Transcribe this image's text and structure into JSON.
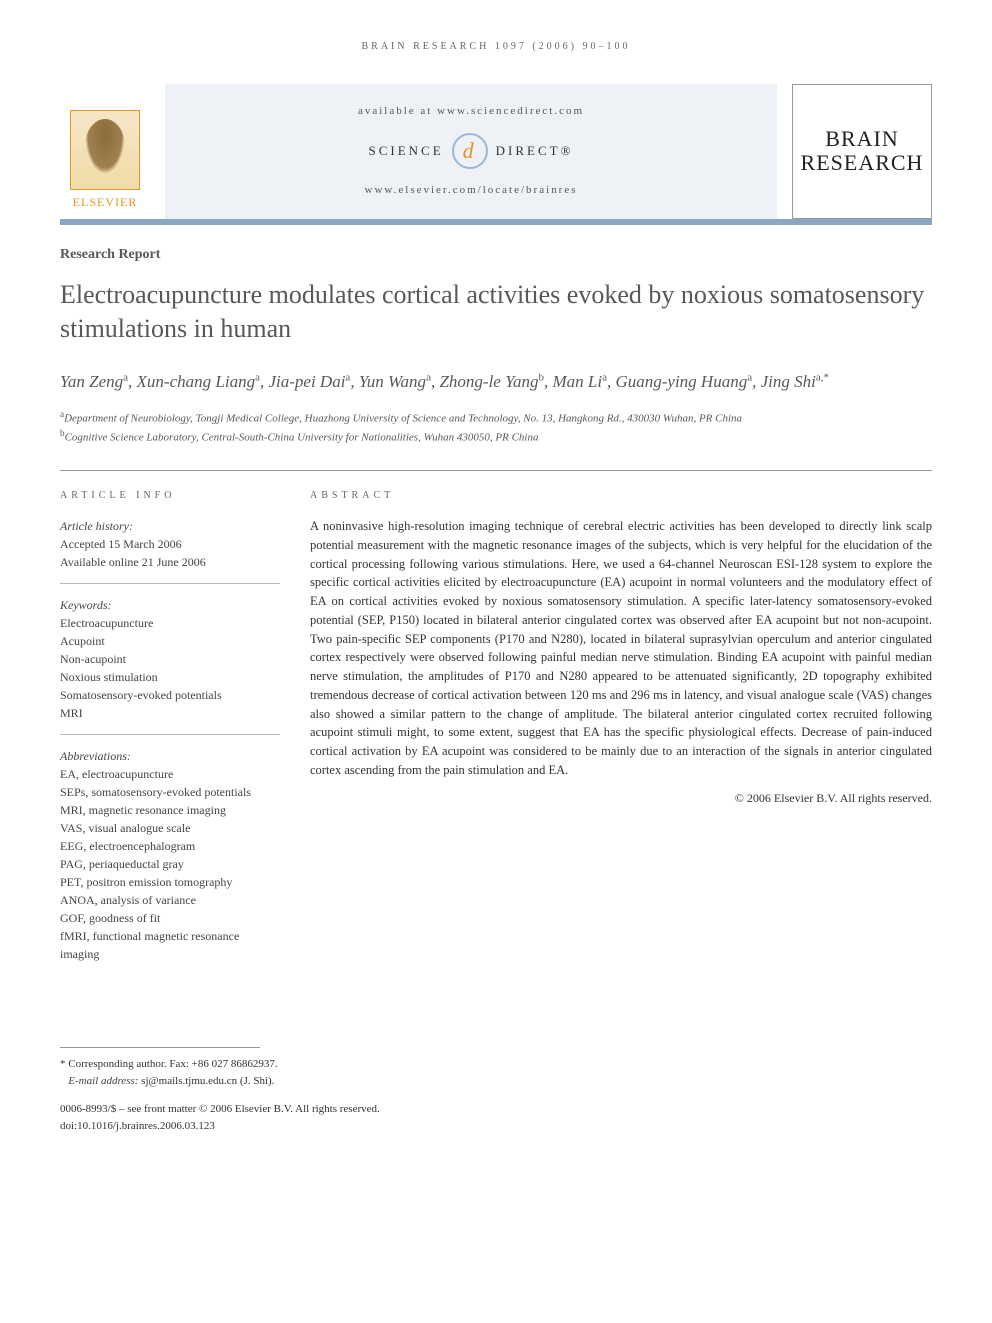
{
  "running_header": "BRAIN RESEARCH 1097 (2006) 90–100",
  "header": {
    "publisher": "ELSEVIER",
    "available_text": "available at www.sciencedirect.com",
    "sd_left": "SCIENCE",
    "sd_right": "DIRECT®",
    "journal_url": "www.elsevier.com/locate/brainres",
    "journal_name_line1": "BRAIN",
    "journal_name_line2": "RESEARCH"
  },
  "article_type": "Research Report",
  "title": "Electroacupuncture modulates cortical activities evoked by noxious somatosensory stimulations in human",
  "authors_html": "Yan Zeng<sup>a</sup>, Xun-chang Liang<sup>a</sup>, Jia-pei Dai<sup>a</sup>, Yun Wang<sup>a</sup>, Zhong-le Yang<sup>b</sup>, Man Li<sup>a</sup>, Guang-ying Huang<sup>a</sup>, Jing Shi<sup>a,*</sup>",
  "affiliations": {
    "a": "Department of Neurobiology, Tongji Medical College, Huazhong University of Science and Technology, No. 13, Hangkong Rd., 430030 Wuhan, PR China",
    "b": "Cognitive Science Laboratory, Central-South-China University for Nationalities, Wuhan 430050, PR China"
  },
  "info": {
    "heading": "ARTICLE INFO",
    "history_label": "Article history:",
    "history_lines": [
      "Accepted 15 March 2006",
      "Available online 21 June 2006"
    ],
    "keywords_label": "Keywords:",
    "keywords": [
      "Electroacupuncture",
      "Acupoint",
      "Non-acupoint",
      "Noxious stimulation",
      "Somatosensory-evoked potentials",
      "MRI"
    ],
    "abbrev_label": "Abbreviations:",
    "abbreviations": [
      "EA, electroacupuncture",
      "SEPs, somatosensory-evoked potentials",
      "MRI, magnetic resonance imaging",
      "VAS, visual analogue scale",
      "EEG, electroencephalogram",
      "PAG, periaqueductal gray",
      "PET, positron emission tomography",
      "ANOA, analysis of variance",
      "GOF, goodness of fit",
      "fMRI, functional magnetic resonance imaging"
    ]
  },
  "abstract": {
    "heading": "ABSTRACT",
    "text": "A noninvasive high-resolution imaging technique of cerebral electric activities has been developed to directly link scalp potential measurement with the magnetic resonance images of the subjects, which is very helpful for the elucidation of the cortical processing following various stimulations. Here, we used a 64-channel Neuroscan ESI-128 system to explore the specific cortical activities elicited by electroacupuncture (EA) acupoint in normal volunteers and the modulatory effect of EA on cortical activities evoked by noxious somatosensory stimulation. A specific later-latency somatosensory-evoked potential (SEP, P150) located in bilateral anterior cingulated cortex was observed after EA acupoint but not non-acupoint. Two pain-specific SEP components (P170 and N280), located in bilateral suprasylvian operculum and anterior cingulated cortex respectively were observed following painful median nerve stimulation. Binding EA acupoint with painful median nerve stimulation, the amplitudes of P170 and N280 appeared to be attenuated significantly, 2D topography exhibited tremendous decrease of cortical activation between 120 ms and 296 ms in latency, and visual analogue scale (VAS) changes also showed a similar pattern to the change of amplitude. The bilateral anterior cingulated cortex recruited following acupoint stimuli might, to some extent, suggest that EA has the specific physiological effects. Decrease of pain-induced cortical activation by EA acupoint was considered to be mainly due to an interaction of the signals in anterior cingulated cortex ascending from the pain stimulation and EA.",
    "copyright": "© 2006 Elsevier B.V. All rights reserved."
  },
  "footnote": {
    "corresponding": "* Corresponding author. Fax: +86 027 86862937.",
    "email_label": "E-mail address:",
    "email": "sj@mails.tjmu.edu.cn",
    "email_name": "(J. Shi)."
  },
  "bottom": {
    "issn_line": "0006-8993/$ – see front matter © 2006 Elsevier B.V. All rights reserved.",
    "doi_line": "doi:10.1016/j.brainres.2006.03.123"
  },
  "colors": {
    "band_border": "#89a8c4",
    "publisher_orange": "#e8941e",
    "heading_gray": "#58585a",
    "band_bg": "#eef2f6"
  }
}
